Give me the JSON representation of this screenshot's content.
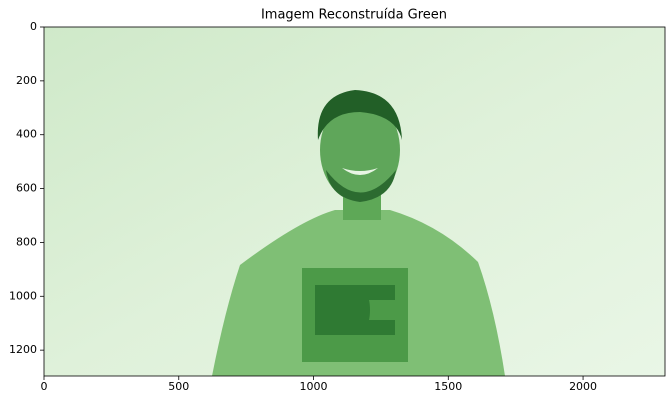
{
  "chart_data": {
    "type": "image",
    "title": "Imagem Reconstruída Green",
    "xlim": [
      0,
      2304
    ],
    "ylim": [
      1296,
      0
    ],
    "xticks": [
      0,
      500,
      1000,
      1500,
      2000
    ],
    "yticks": [
      0,
      200,
      400,
      600,
      800,
      1000,
      1200
    ],
    "color": "#2e7d32"
  }
}
